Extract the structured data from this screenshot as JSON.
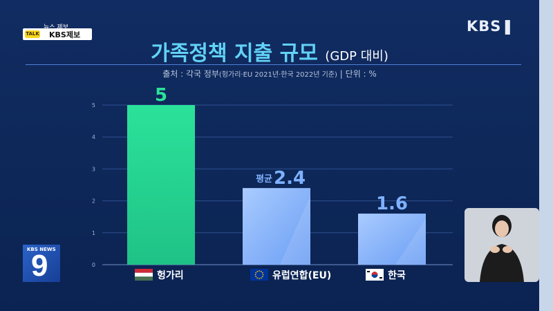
{
  "tip": {
    "small": "뉴스 제보",
    "label": "KBS제보"
  },
  "broadcaster": "KBS",
  "news_badge": {
    "label": "KBS NEWS",
    "number": "9"
  },
  "title": {
    "main": "가족정책 지출 규모",
    "sub": "(GDP 대비)"
  },
  "source": {
    "prefix": "출처 : 각국 정부",
    "note": "(헝가리·EU 2021년·한국 2022년 기준)",
    "unit": "|  단위 : %"
  },
  "colors": {
    "hungary": "#2be29a",
    "eu": "#7fb1ff",
    "korea": "#7fb1ff",
    "title": "#62d2f6",
    "value_label": "#7fb1ff"
  },
  "chart_data": {
    "type": "bar",
    "categories": [
      "헝가리",
      "유럽연합(EU)",
      "한국"
    ],
    "values": [
      5,
      2.4,
      1.6
    ],
    "value_labels": [
      "5",
      "2.4",
      "1.6"
    ],
    "value_prefixes": [
      "",
      "평균",
      ""
    ],
    "flags": [
      "hungary-flag-icon",
      "eu-flag-icon",
      "korea-flag-icon"
    ],
    "ylim": [
      0,
      5
    ],
    "yticks": [
      "0",
      "1",
      "2",
      "3",
      "4",
      "5"
    ],
    "grid": true,
    "title": "가족정책 지출 규모",
    "xlabel": "",
    "ylabel": ""
  }
}
